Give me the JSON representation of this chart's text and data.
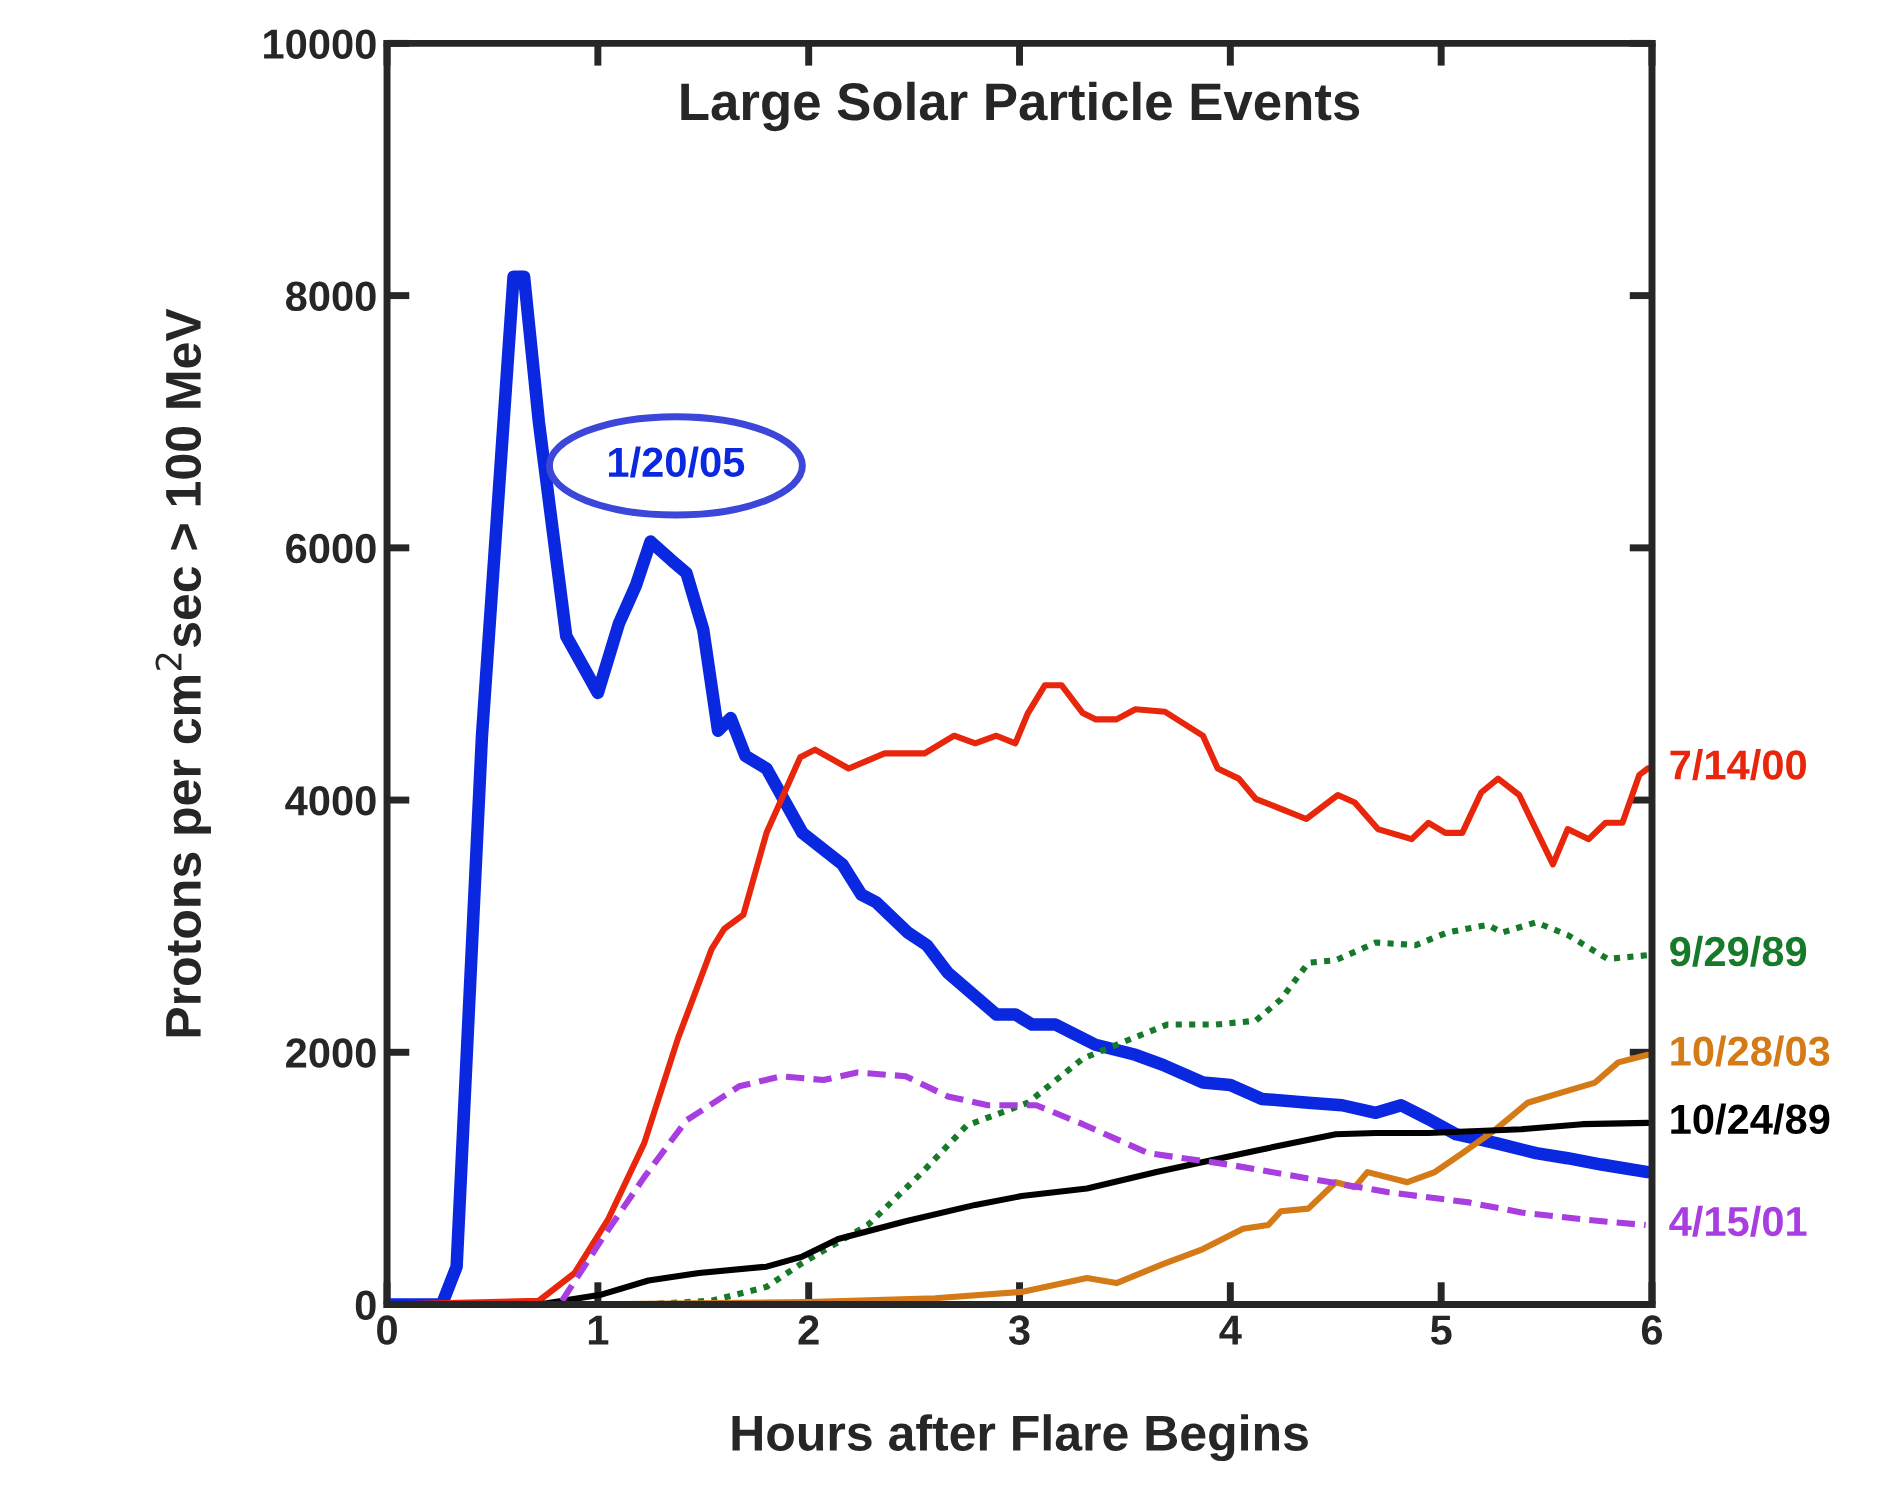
{
  "chart_data": {
    "type": "line",
    "title": "Large Solar Particle Events",
    "xlabel": "Hours after Flare Begins",
    "ylabel": "Protons per cm$^{2}$sec > 100 MeV",
    "xlim": [
      0,
      6
    ],
    "ylim": [
      0,
      10000
    ],
    "xticks": [
      0,
      1,
      2,
      3,
      4,
      5,
      6
    ],
    "yticks": [
      0,
      2000,
      4000,
      6000,
      8000,
      10000
    ],
    "grid": false,
    "legend": false,
    "series": [
      {
        "name": "1/20/05",
        "color": "#0a28e0",
        "line_style": "solid",
        "x": [
          0,
          0.26,
          0.33,
          0.45,
          0.6,
          0.65,
          0.72,
          0.85,
          1.0,
          1.1,
          1.18,
          1.25,
          1.35,
          1.42,
          1.5,
          1.57,
          1.63,
          1.7,
          1.8,
          1.9,
          1.97,
          2.16,
          2.25,
          2.32,
          2.47,
          2.56,
          2.66,
          2.89,
          2.98,
          3.06,
          3.17,
          3.36,
          3.55,
          3.68,
          3.87,
          4.0,
          4.15,
          4.37,
          4.53,
          4.69,
          4.81,
          4.94,
          5.07,
          5.26,
          5.45,
          5.6,
          5.76,
          5.98
        ],
        "values": [
          0,
          0,
          300,
          4500,
          8150,
          8150,
          7000,
          5300,
          4850,
          5400,
          5700,
          6050,
          5900,
          5800,
          5350,
          4550,
          4650,
          4350,
          4250,
          3950,
          3740,
          3490,
          3250,
          3190,
          2950,
          2850,
          2630,
          2300,
          2300,
          2220,
          2220,
          2060,
          1980,
          1900,
          1760,
          1740,
          1630,
          1600,
          1580,
          1520,
          1580,
          1470,
          1350,
          1280,
          1200,
          1160,
          1110,
          1050
        ]
      },
      {
        "name": "7/14/00",
        "color": "#e8260c",
        "line_style": "solid",
        "x": [
          0,
          0.72,
          0.89,
          1.05,
          1.22,
          1.38,
          1.54,
          1.6,
          1.69,
          1.8,
          1.96,
          2.03,
          2.19,
          2.36,
          2.55,
          2.69,
          2.79,
          2.89,
          2.98,
          3.04,
          3.12,
          3.2,
          3.3,
          3.36,
          3.46,
          3.55,
          3.69,
          3.87,
          3.94,
          4.04,
          4.12,
          4.24,
          4.36,
          4.51,
          4.59,
          4.7,
          4.86,
          4.94,
          5.02,
          5.1,
          5.19,
          5.27,
          5.37,
          5.53,
          5.6,
          5.7,
          5.78,
          5.86,
          5.94,
          5.98
        ],
        "values": [
          0,
          30,
          250,
          680,
          1280,
          2110,
          2820,
          2980,
          3090,
          3740,
          4340,
          4400,
          4250,
          4370,
          4370,
          4510,
          4450,
          4510,
          4450,
          4690,
          4910,
          4910,
          4690,
          4640,
          4640,
          4720,
          4700,
          4510,
          4250,
          4170,
          4010,
          3930,
          3850,
          4040,
          3980,
          3770,
          3690,
          3820,
          3740,
          3740,
          4060,
          4170,
          4040,
          3490,
          3770,
          3690,
          3820,
          3820,
          4200,
          4250
        ]
      },
      {
        "name": "9/29/89",
        "color": "#177a2a",
        "line_style": "dotted",
        "x": [
          1.22,
          1.54,
          1.8,
          1.97,
          2.28,
          2.54,
          2.75,
          3.04,
          3.3,
          3.49,
          3.7,
          3.93,
          4.12,
          4.24,
          4.37,
          4.5,
          4.69,
          4.88,
          5.03,
          5.22,
          5.29,
          5.45,
          5.6,
          5.79,
          5.98
        ],
        "values": [
          0,
          30,
          140,
          330,
          630,
          1050,
          1420,
          1600,
          1950,
          2080,
          2220,
          2220,
          2250,
          2420,
          2710,
          2730,
          2870,
          2850,
          2950,
          3010,
          2950,
          3030,
          2930,
          2740,
          2770
        ]
      },
      {
        "name": "10/28/03",
        "color": "#d47a16",
        "line_style": "solid",
        "x": [
          0.9,
          2.0,
          2.6,
          3.01,
          3.32,
          3.46,
          3.68,
          3.87,
          4.06,
          4.18,
          4.24,
          4.37,
          4.5,
          4.59,
          4.65,
          4.84,
          4.97,
          5.1,
          5.26,
          5.41,
          5.57,
          5.73,
          5.84,
          5.98
        ],
        "values": [
          0,
          20,
          50,
          100,
          210,
          170,
          320,
          440,
          600,
          630,
          740,
          760,
          970,
          930,
          1050,
          970,
          1050,
          1200,
          1390,
          1600,
          1680,
          1760,
          1920,
          1980
        ]
      },
      {
        "name": "10/24/89",
        "color": "#000000",
        "line_style": "solid",
        "x": [
          0.72,
          1.02,
          1.24,
          1.48,
          1.8,
          1.97,
          2.14,
          2.46,
          2.79,
          3.01,
          3.32,
          3.65,
          4.12,
          4.5,
          4.69,
          4.94,
          5.38,
          5.67,
          5.98
        ],
        "values": [
          0,
          80,
          190,
          250,
          300,
          380,
          520,
          660,
          790,
          860,
          920,
          1050,
          1220,
          1350,
          1360,
          1360,
          1390,
          1430,
          1440
        ]
      },
      {
        "name": "4/15/01",
        "color": "#a83ee0",
        "line_style": "dashed",
        "x": [
          0.83,
          1.02,
          1.22,
          1.42,
          1.67,
          1.87,
          2.07,
          2.23,
          2.46,
          2.66,
          2.85,
          3.08,
          3.3,
          3.61,
          3.99,
          4.37,
          4.75,
          5.13,
          5.38,
          5.7,
          5.97
        ],
        "values": [
          30,
          520,
          1010,
          1460,
          1730,
          1810,
          1780,
          1840,
          1810,
          1650,
          1580,
          1580,
          1430,
          1200,
          1110,
          1000,
          890,
          810,
          730,
          670,
          630
        ]
      }
    ]
  }
}
